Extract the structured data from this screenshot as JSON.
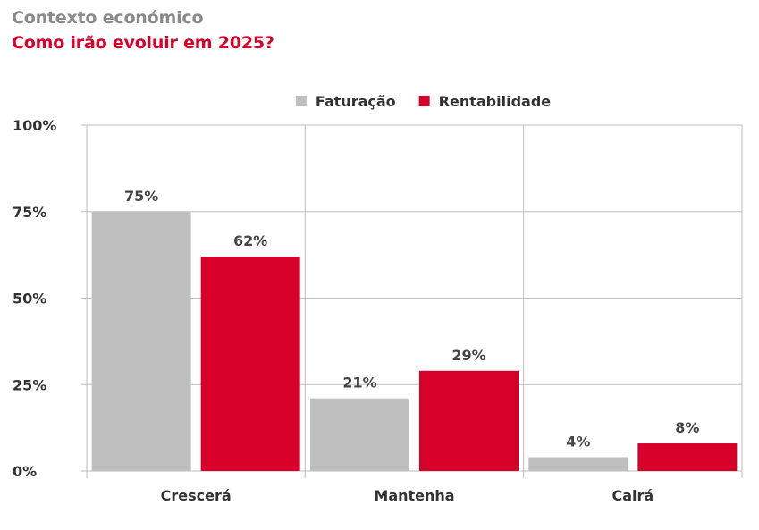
{
  "header": {
    "kicker": "Contexto económico",
    "title": "Como irão evoluir em 2025?"
  },
  "chart_data": {
    "type": "bar",
    "categories": [
      "Crescerá",
      "Mantenha",
      "Cairá"
    ],
    "series": [
      {
        "name": "Faturação",
        "values": [
          75,
          21,
          4
        ],
        "labels": [
          "75%",
          "21%",
          "4%"
        ],
        "color": "#bfbfbf"
      },
      {
        "name": "Rentabilidade",
        "values": [
          62,
          29,
          8
        ],
        "labels": [
          "62%",
          "29%",
          "8%"
        ],
        "color": "#d6002a"
      }
    ],
    "ylim": [
      0,
      100
    ],
    "yticks": [
      0,
      25,
      50,
      75,
      100
    ],
    "ytick_labels": [
      "0%",
      "25%",
      "50%",
      "75%",
      "100%"
    ],
    "grid": true,
    "legend": "top-center",
    "colors": {
      "kicker": "#8a8a8a",
      "title": "#d6002a",
      "grid": "#bdbdbd"
    }
  }
}
